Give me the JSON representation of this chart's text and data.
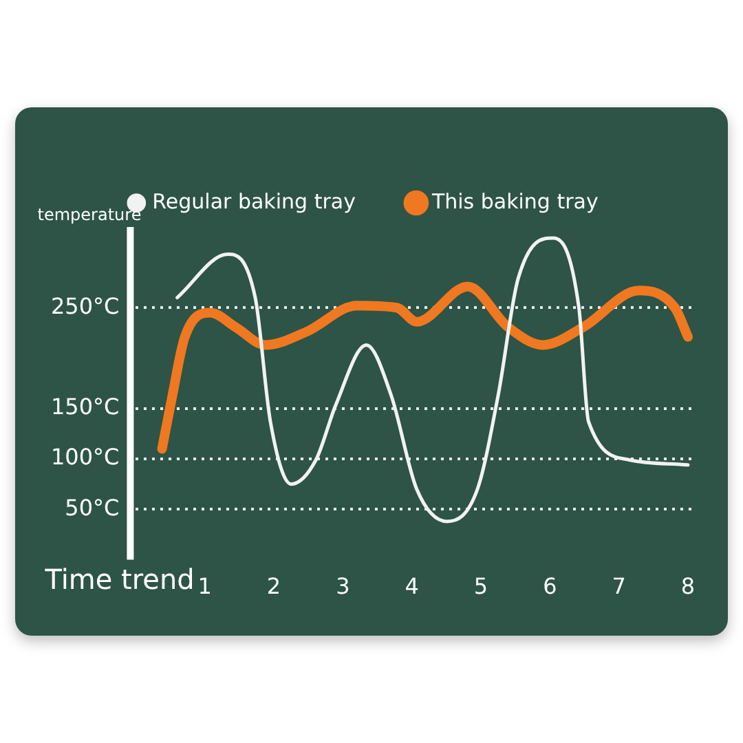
{
  "chart_data": {
    "type": "line",
    "xlabel": "Time trend",
    "ylabel": "temperature",
    "legend": "top",
    "grid": "y",
    "marker": "none",
    "xlim": [
      0,
      8.1
    ],
    "xticks": [
      1,
      2,
      3,
      4,
      5,
      6,
      7,
      8
    ],
    "ylim": [
      0,
      330
    ],
    "yticks": [
      {
        "value": 50,
        "label": "50°C"
      },
      {
        "value": 100,
        "label": "100°C"
      },
      {
        "value": 150,
        "label": "150°C"
      },
      {
        "value": 250,
        "label": "250°C"
      }
    ],
    "series": [
      {
        "name": "This baking tray",
        "color": "#f07820",
        "x": [
          0.38,
          0.53,
          0.71,
          1.08,
          1.44,
          1.88,
          2.47,
          3.2,
          3.78,
          4.07,
          4.81,
          5.39,
          5.9,
          6.49,
          7.29,
          7.81,
          8.0
        ],
        "values": [
          110,
          163,
          221,
          245,
          231,
          213,
          226,
          252,
          250,
          236,
          271,
          231,
          213,
          231,
          267,
          250,
          221
        ]
      },
      {
        "name": "Regular baking tray",
        "color": "#f2f2f2",
        "x": [
          0.6,
          1.33,
          1.73,
          1.95,
          2.25,
          2.61,
          2.9,
          3.34,
          3.7,
          4.07,
          4.51,
          4.95,
          5.25,
          5.54,
          6.05,
          6.42,
          6.56,
          7.15,
          8.0
        ],
        "values": [
          260,
          303,
          260,
          137,
          75,
          99,
          154,
          213,
          163,
          70,
          38,
          70,
          163,
          279,
          319,
          250,
          137,
          99,
          94
        ]
      }
    ]
  }
}
